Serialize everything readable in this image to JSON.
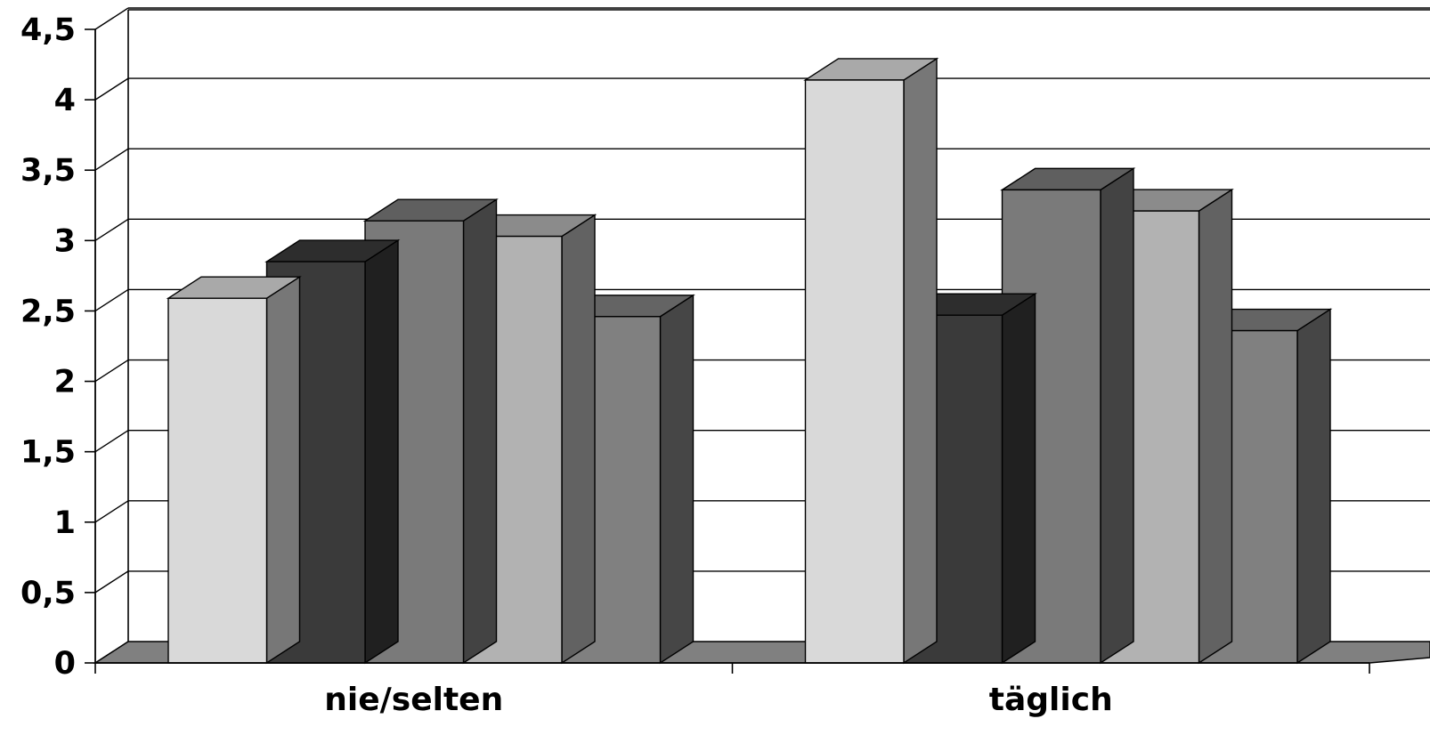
{
  "chart_data": {
    "type": "bar",
    "style": "3d-clustered-column",
    "categories": [
      "nie/selten",
      "täglich"
    ],
    "series": [
      {
        "values": [
          2.59,
          4.14
        ],
        "color": "#d9d9d9"
      },
      {
        "values": [
          2.85,
          2.47
        ],
        "color": "#3a3a3a"
      },
      {
        "values": [
          3.14,
          3.36
        ],
        "color": "#7a7a7a"
      },
      {
        "values": [
          3.03,
          3.21
        ],
        "color": "#b2b2b2"
      },
      {
        "values": [
          2.46,
          2.36
        ],
        "color": "#808080"
      }
    ],
    "y_ticks": [
      "0",
      "0,5",
      "1",
      "1,5",
      "2",
      "2,5",
      "3",
      "3,5",
      "4",
      "4,5"
    ],
    "ylim": [
      0,
      4.5
    ],
    "grid": true,
    "legend": "none",
    "title": "",
    "xlabel": "",
    "ylabel": ""
  }
}
